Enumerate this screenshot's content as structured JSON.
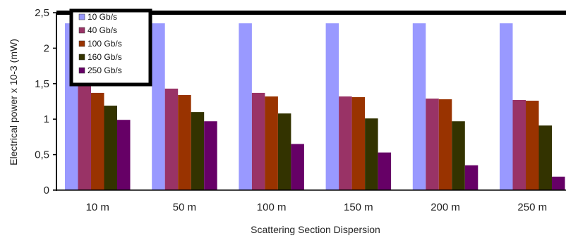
{
  "chart_data": {
    "type": "bar",
    "title": "",
    "xlabel": "Scattering Section Dispersion",
    "ylabel": "Electrical power x 10-3 (mW)",
    "ylim": [
      0,
      2.5
    ],
    "yticks": [
      "0",
      "0,5",
      "1",
      "1,5",
      "2",
      "2,5"
    ],
    "ytick_values": [
      0,
      0.5,
      1,
      1.5,
      2,
      2.5
    ],
    "grid": false,
    "legend_position": "top-left",
    "categories": [
      "10 m",
      "50 m",
      "100 m",
      "150 m",
      "200 m",
      "250 m"
    ],
    "series": [
      {
        "name": "10 Gb/s",
        "color": "#9999ff",
        "values": [
          2.35,
          2.35,
          2.35,
          2.35,
          2.35,
          2.35
        ]
      },
      {
        "name": "40 Gb/s",
        "color": "#993366",
        "values": [
          1.62,
          1.43,
          1.37,
          1.32,
          1.29,
          1.27
        ]
      },
      {
        "name": "100 Gb/s",
        "color": "#993300",
        "values": [
          1.37,
          1.34,
          1.32,
          1.31,
          1.28,
          1.26
        ]
      },
      {
        "name": "160 Gb/s",
        "color": "#333300",
        "values": [
          1.19,
          1.1,
          1.08,
          1.01,
          0.97,
          0.91
        ]
      },
      {
        "name": "250 Gb/s",
        "color": "#660066",
        "values": [
          0.99,
          0.97,
          0.65,
          0.53,
          0.35,
          0.19
        ]
      }
    ]
  }
}
